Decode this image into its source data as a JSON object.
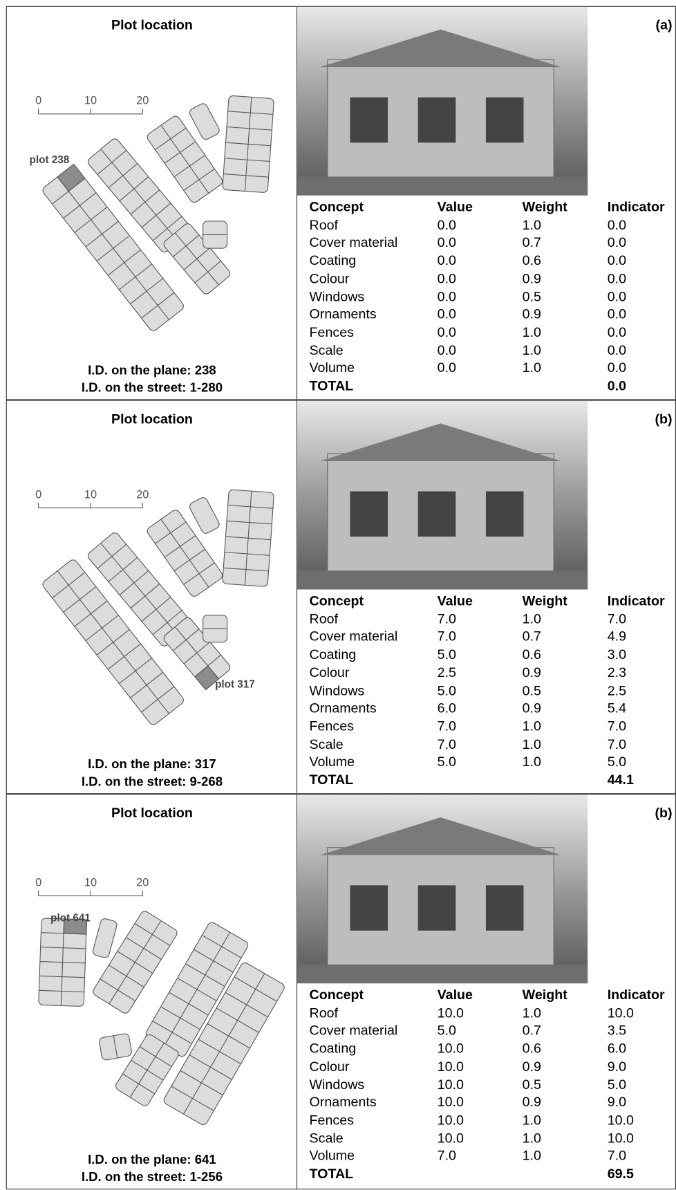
{
  "panels": [
    {
      "label": "(a)",
      "location_title": "Plot location",
      "scale_ticks": [
        "0",
        "10",
        "20"
      ],
      "plot_label": "plot 238",
      "id_plane": "I.D. on the plane: 238",
      "id_street": "I.D. on the street: 1-280",
      "table": {
        "header": [
          "Concept",
          "Value",
          "Weight",
          "Indicator"
        ],
        "rows": [
          [
            "Roof",
            "0.0",
            "1.0",
            "0.0"
          ],
          [
            "Cover material",
            "0.0",
            "0.7",
            "0.0"
          ],
          [
            "Coating",
            "0.0",
            "0.6",
            "0.0"
          ],
          [
            "Colour",
            "0.0",
            "0.9",
            "0.0"
          ],
          [
            "Windows",
            "0.0",
            "0.5",
            "0.0"
          ],
          [
            "Ornaments",
            "0.0",
            "0.9",
            "0.0"
          ],
          [
            "Fences",
            "0.0",
            "1.0",
            "0.0"
          ],
          [
            "Scale",
            "0.0",
            "1.0",
            "0.0"
          ],
          [
            "Volume",
            "0.0",
            "1.0",
            "0.0"
          ]
        ],
        "total": [
          "TOTAL",
          "0.0"
        ]
      }
    },
    {
      "label": "(b)",
      "location_title": "Plot location",
      "scale_ticks": [
        "0",
        "10",
        "20"
      ],
      "plot_label": "plot 317",
      "id_plane": "I.D. on the plane: 317",
      "id_street": "I.D. on the street: 9-268",
      "table": {
        "header": [
          "Concept",
          "Value",
          "Weight",
          "Indicator"
        ],
        "rows": [
          [
            "Roof",
            "7.0",
            "1.0",
            "7.0"
          ],
          [
            "Cover material",
            "7.0",
            "0.7",
            "4.9"
          ],
          [
            "Coating",
            "5.0",
            "0.6",
            "3.0"
          ],
          [
            "Colour",
            "2.5",
            "0.9",
            "2.3"
          ],
          [
            "Windows",
            "5.0",
            "0.5",
            "2.5"
          ],
          [
            "Ornaments",
            "6.0",
            "0.9",
            "5.4"
          ],
          [
            "Fences",
            "7.0",
            "1.0",
            "7.0"
          ],
          [
            "Scale",
            "7.0",
            "1.0",
            "7.0"
          ],
          [
            "Volume",
            "5.0",
            "1.0",
            "5.0"
          ]
        ],
        "total": [
          "TOTAL",
          "44.1"
        ]
      }
    },
    {
      "label": "(b)",
      "location_title": "Plot location",
      "scale_ticks": [
        "0",
        "10",
        "20"
      ],
      "plot_label": "plot 641",
      "id_plane": "I.D. on the plane: 641",
      "id_street": "I.D. on the street: 1-256",
      "table": {
        "header": [
          "Concept",
          "Value",
          "Weight",
          "Indicator"
        ],
        "rows": [
          [
            "Roof",
            "10.0",
            "1.0",
            "10.0"
          ],
          [
            "Cover material",
            "5.0",
            "0.7",
            "3.5"
          ],
          [
            "Coating",
            "10.0",
            "0.6",
            "6.0"
          ],
          [
            "Colour",
            "10.0",
            "0.9",
            "9.0"
          ],
          [
            "Windows",
            "10.0",
            "0.5",
            "5.0"
          ],
          [
            "Ornaments",
            "10.0",
            "0.9",
            "9.0"
          ],
          [
            "Fences",
            "10.0",
            "1.0",
            "10.0"
          ],
          [
            "Scale",
            "10.0",
            "1.0",
            "10.0"
          ],
          [
            "Volume",
            "7.0",
            "1.0",
            "7.0"
          ]
        ],
        "total": [
          "TOTAL",
          "69.5"
        ]
      }
    }
  ]
}
